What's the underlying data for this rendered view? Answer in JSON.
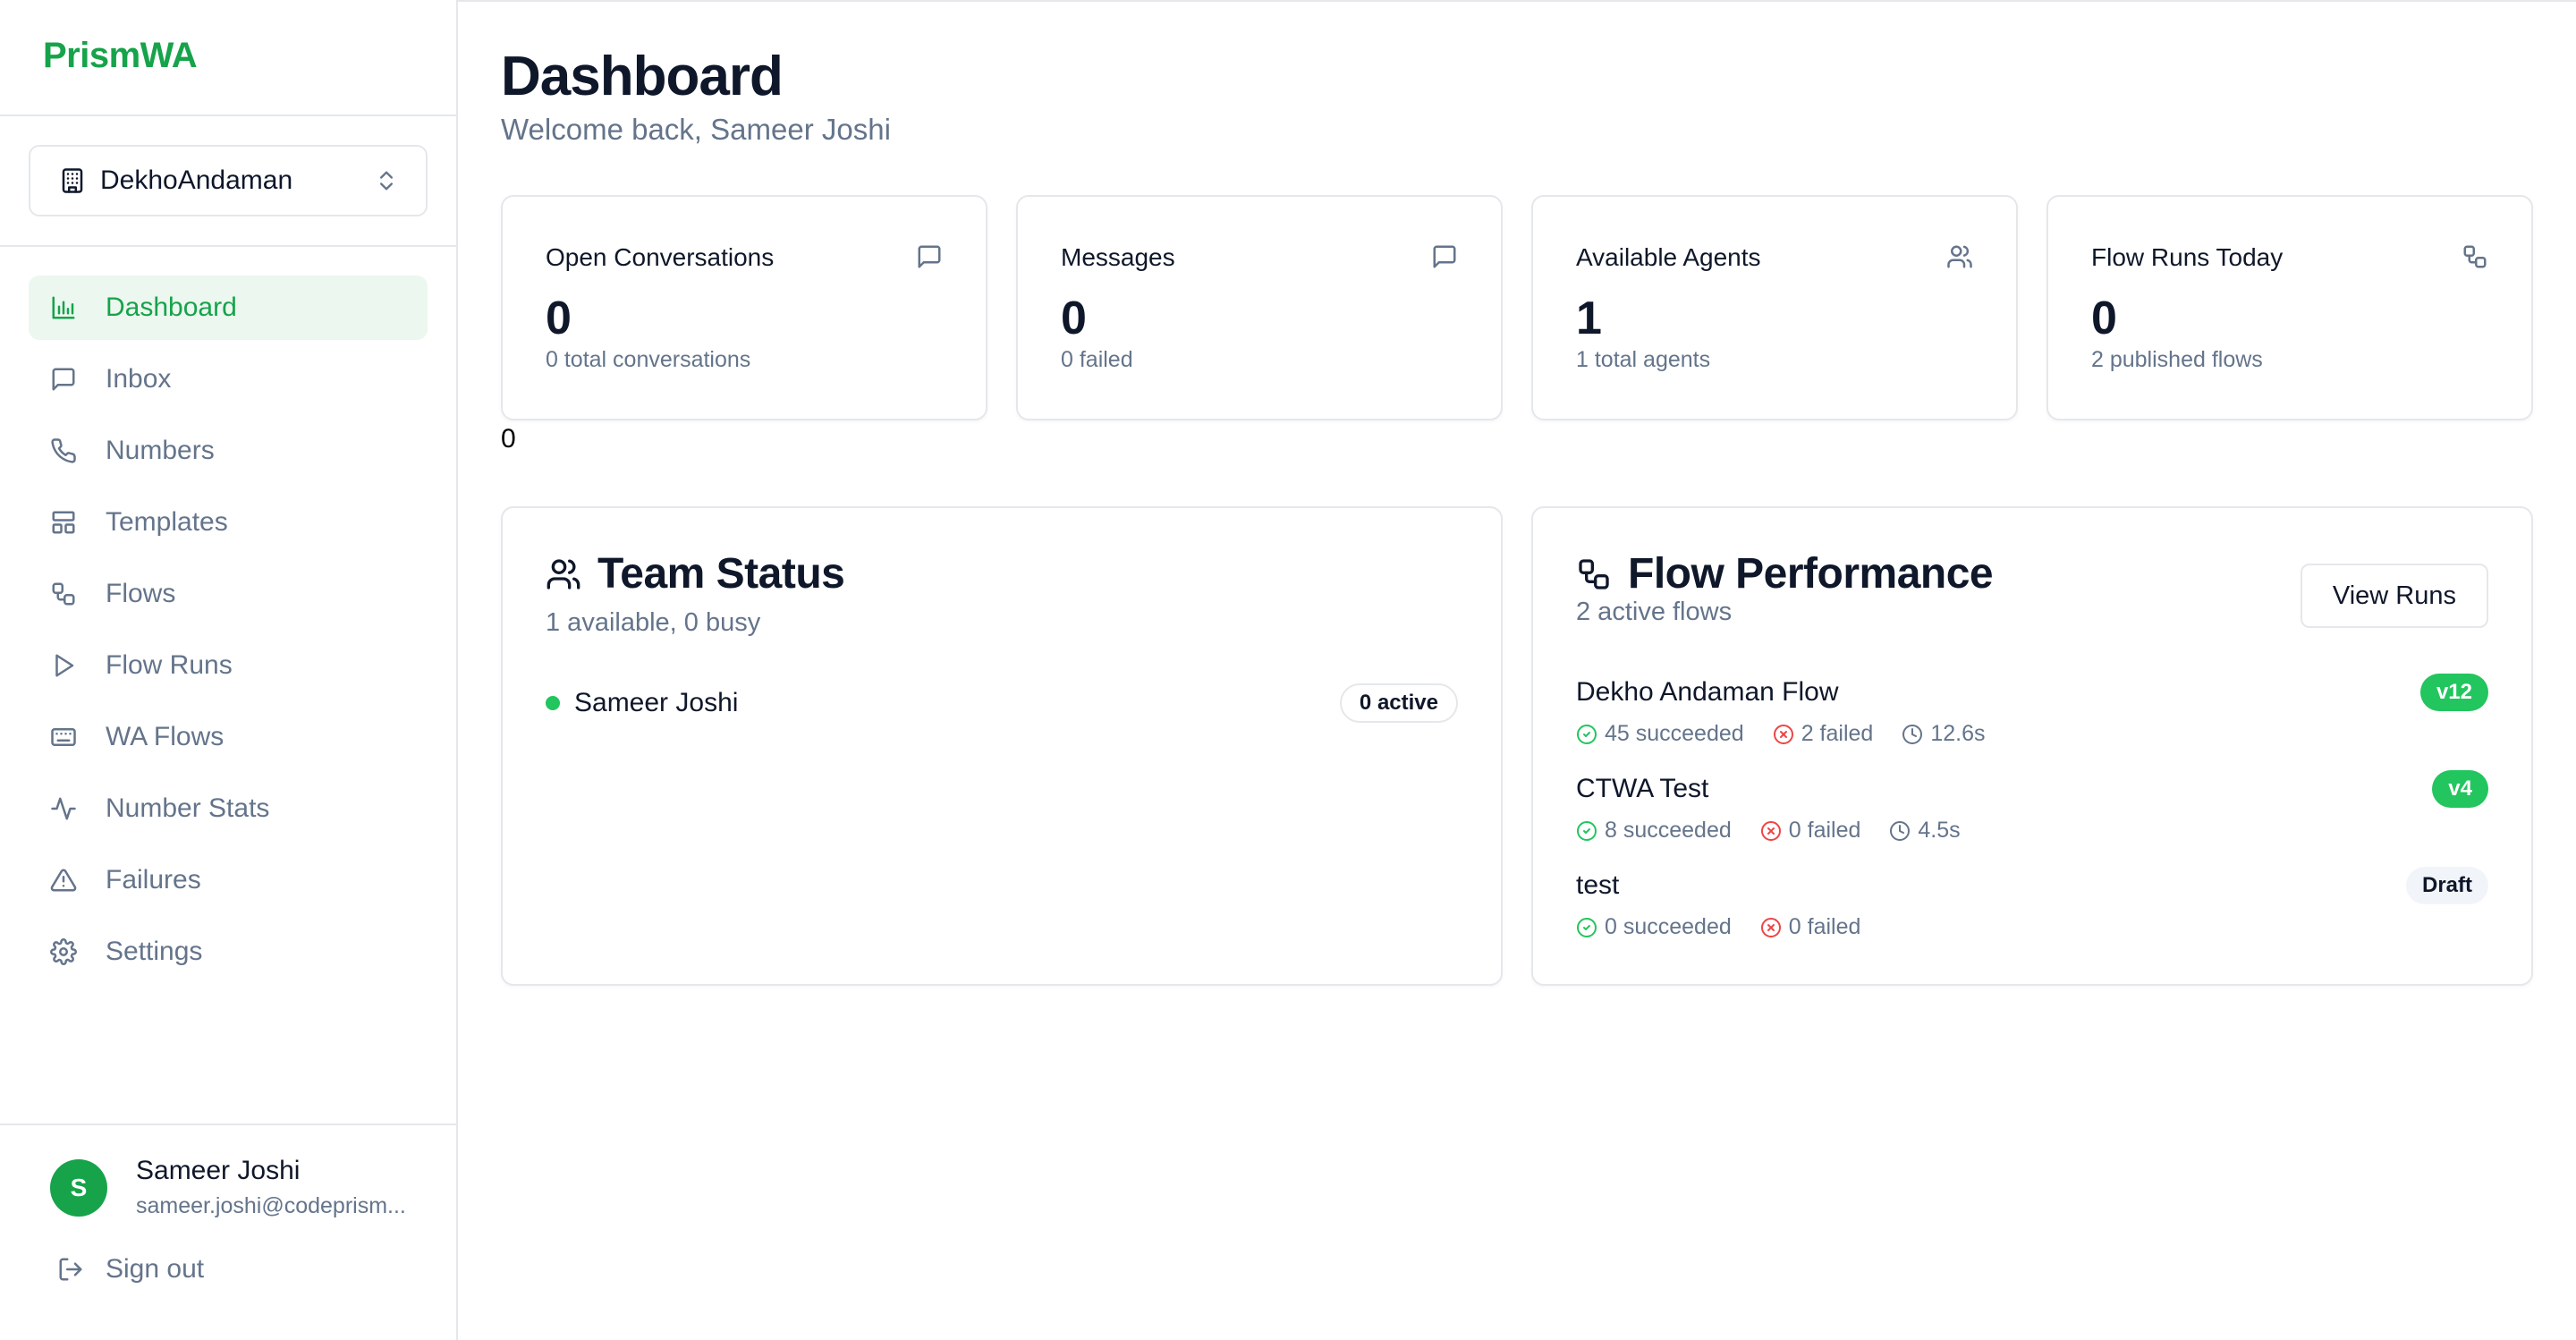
{
  "brand": "PrismWA",
  "workspace": {
    "name": "DekhoAndaman"
  },
  "nav": [
    {
      "label": "Dashboard",
      "icon": "bar-chart-icon",
      "active": true
    },
    {
      "label": "Inbox",
      "icon": "message-square-icon"
    },
    {
      "label": "Numbers",
      "icon": "phone-icon"
    },
    {
      "label": "Templates",
      "icon": "layout-icon"
    },
    {
      "label": "Flows",
      "icon": "workflow-icon"
    },
    {
      "label": "Flow Runs",
      "icon": "play-icon"
    },
    {
      "label": "WA Flows",
      "icon": "keyboard-icon"
    },
    {
      "label": "Number Stats",
      "icon": "activity-icon"
    },
    {
      "label": "Failures",
      "icon": "alert-triangle-icon"
    },
    {
      "label": "Settings",
      "icon": "gear-icon"
    }
  ],
  "user": {
    "initial": "S",
    "name": "Sameer Joshi",
    "email": "sameer.joshi@codeprism..."
  },
  "signout_label": "Sign out",
  "header": {
    "title": "Dashboard",
    "subtitle": "Welcome back, Sameer Joshi"
  },
  "stats": [
    {
      "label": "Open Conversations",
      "value": "0",
      "note": "0 total conversations",
      "icon": "message-square-icon"
    },
    {
      "label": "Messages",
      "value": "0",
      "note": "0 failed",
      "icon": "message-square-icon"
    },
    {
      "label": "Available Agents",
      "value": "1",
      "note": "1 total agents",
      "icon": "users-icon"
    },
    {
      "label": "Flow Runs Today",
      "value": "0",
      "note": "2 published flows",
      "icon": "workflow-icon"
    }
  ],
  "stray_text": "0",
  "team": {
    "title": "Team Status",
    "subtitle": "1 available, 0 busy",
    "members": [
      {
        "name": "Sameer Joshi",
        "badge": "0 active"
      }
    ]
  },
  "flow_perf": {
    "title": "Flow Performance",
    "subtitle": "2 active flows",
    "button": "View Runs",
    "flows": [
      {
        "name": "Dekho Andaman Flow",
        "badge": "v12",
        "succeeded": "45 succeeded",
        "failed": "2 failed",
        "duration": "12.6s"
      },
      {
        "name": "CTWA Test",
        "badge": "v4",
        "succeeded": "8 succeeded",
        "failed": "0 failed",
        "duration": "4.5s"
      },
      {
        "name": "test",
        "badge": "Draft",
        "succeeded": "0 succeeded",
        "failed": "0 failed"
      }
    ]
  },
  "colors": {
    "accent": "#16a34a",
    "success": "#22c55e",
    "danger": "#ef4444",
    "muted": "#64748b",
    "border": "#e5e7eb"
  }
}
